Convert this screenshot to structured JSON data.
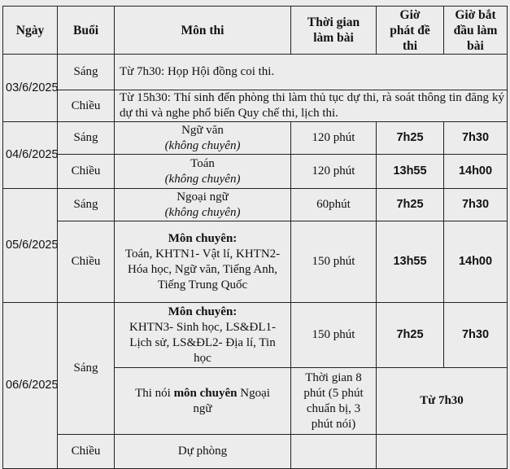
{
  "headers": {
    "date": "Ngày",
    "session": "Buổi",
    "subject": "Môn thi",
    "duration": "Thời gian làm bài",
    "distribute": "Giờ phát đề thi",
    "start": "Giờ bắt đầu làm bài"
  },
  "rows": {
    "d1": {
      "date": "03/6/2025",
      "morning": "Sáng",
      "morning_text": "Từ 7h30: Họp Hội đồng coi thi.",
      "afternoon": "Chiều",
      "afternoon_text": "Từ 15h30: Thí sinh đến phòng thi làm thủ tục dự thi, rà soát thông tin đăng ký dự thi và nghe phổ biến Quy chế thi, lịch thi."
    },
    "d2": {
      "date": "04/6/2025",
      "morning": "Sáng",
      "m_subject": "Ngữ văn",
      "m_note": "(không chuyên)",
      "m_duration": "120 phút",
      "m_dist": "7h25",
      "m_start": "7h30",
      "afternoon": "Chiều",
      "a_subject": "Toán",
      "a_note": "(không chuyên)",
      "a_duration": "120 phút",
      "a_dist": "13h55",
      "a_start": "14h00"
    },
    "d3": {
      "date": "05/6/2025",
      "morning": "Sáng",
      "m_subject": "Ngoại ngữ",
      "m_note": "(không chuyên)",
      "m_duration": "60phút",
      "m_dist": "7h25",
      "m_start": "7h30",
      "afternoon": "Chiều",
      "a_title": "Môn chuyên:",
      "a_list": "Toán, KHTN1- Vật lí, KHTN2- Hóa học, Ngữ văn, Tiếng Anh, Tiếng Trung Quốc",
      "a_duration": "150 phút",
      "a_dist": "13h55",
      "a_start": "14h00"
    },
    "d4": {
      "date": "06/6/2025",
      "morning": "Sáng",
      "m_title": "Môn chuyên:",
      "m_list": "KHTN3- Sinh học, LS&ĐL1- Lịch sử, LS&ĐL2- Địa lí, Tin học",
      "m_duration": "150 phút",
      "m_dist": "7h25",
      "m_start": "7h30",
      "oral_pre": "Thi nói ",
      "oral_bold": "môn chuyên",
      "oral_post": " Ngoại ngữ",
      "oral_duration": "Thời gian 8 phút (5 phút chuẩn bị, 3 phút nói)",
      "oral_time": "Từ 7h30",
      "afternoon": "Chiều",
      "a_subject": "Dự phòng"
    }
  }
}
